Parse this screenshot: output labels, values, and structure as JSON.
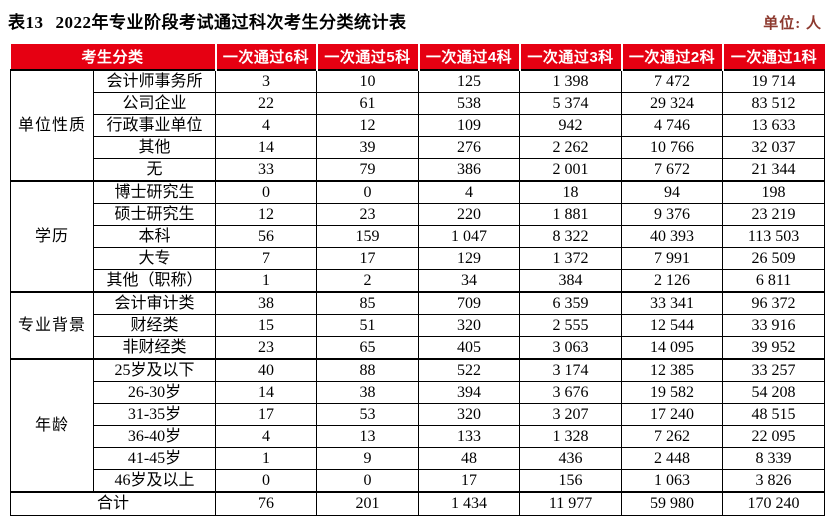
{
  "title": {
    "no": "表13",
    "text": "2022年专业阶段考试通过科次考生分类统计表"
  },
  "unit_label": "单位: 人",
  "colors": {
    "header_bg": "#e60012",
    "header_text": "#ffffff",
    "unit_text": "#8d3a2f",
    "border": "#000000"
  },
  "table": {
    "header": [
      "考生分类",
      "一次通过6科",
      "一次通过5科",
      "一次通过4科",
      "一次通过3科",
      "一次通过2科",
      "一次通过1科"
    ],
    "groups": [
      {
        "label": "单位性质",
        "rows": [
          {
            "label": "会计师事务所",
            "values": [
              "3",
              "10",
              "125",
              "1 398",
              "7 472",
              "19 714"
            ]
          },
          {
            "label": "公司企业",
            "values": [
              "22",
              "61",
              "538",
              "5 374",
              "29 324",
              "83 512"
            ]
          },
          {
            "label": "行政事业单位",
            "values": [
              "4",
              "12",
              "109",
              "942",
              "4 746",
              "13 633"
            ]
          },
          {
            "label": "其他",
            "values": [
              "14",
              "39",
              "276",
              "2 262",
              "10 766",
              "32 037"
            ]
          },
          {
            "label": "无",
            "values": [
              "33",
              "79",
              "386",
              "2 001",
              "7 672",
              "21 344"
            ]
          }
        ]
      },
      {
        "label": "学历",
        "rows": [
          {
            "label": "博士研究生",
            "values": [
              "0",
              "0",
              "4",
              "18",
              "94",
              "198"
            ]
          },
          {
            "label": "硕士研究生",
            "values": [
              "12",
              "23",
              "220",
              "1 881",
              "9 376",
              "23 219"
            ]
          },
          {
            "label": "本科",
            "values": [
              "56",
              "159",
              "1 047",
              "8 322",
              "40 393",
              "113 503"
            ]
          },
          {
            "label": "大专",
            "values": [
              "7",
              "17",
              "129",
              "1 372",
              "7 991",
              "26 509"
            ]
          },
          {
            "label": "其他（职称）",
            "values": [
              "1",
              "2",
              "34",
              "384",
              "2 126",
              "6 811"
            ]
          }
        ]
      },
      {
        "label": "专业背景",
        "rows": [
          {
            "label": "会计审计类",
            "values": [
              "38",
              "85",
              "709",
              "6 359",
              "33 341",
              "96 372"
            ]
          },
          {
            "label": "财经类",
            "values": [
              "15",
              "51",
              "320",
              "2 555",
              "12 544",
              "33 916"
            ]
          },
          {
            "label": "非财经类",
            "values": [
              "23",
              "65",
              "405",
              "3 063",
              "14 095",
              "39 952"
            ]
          }
        ]
      },
      {
        "label": "年龄",
        "rows": [
          {
            "label": "25岁及以下",
            "values": [
              "40",
              "88",
              "522",
              "3 174",
              "12 385",
              "33 257"
            ]
          },
          {
            "label": "26-30岁",
            "values": [
              "14",
              "38",
              "394",
              "3 676",
              "19 582",
              "54 208"
            ]
          },
          {
            "label": "31-35岁",
            "values": [
              "17",
              "53",
              "320",
              "3 207",
              "17 240",
              "48 515"
            ]
          },
          {
            "label": "36-40岁",
            "values": [
              "4",
              "13",
              "133",
              "1 328",
              "7 262",
              "22 095"
            ]
          },
          {
            "label": "41-45岁",
            "values": [
              "1",
              "9",
              "48",
              "436",
              "2 448",
              "8 339"
            ]
          },
          {
            "label": "46岁及以上",
            "values": [
              "0",
              "0",
              "17",
              "156",
              "1 063",
              "3 826"
            ]
          }
        ]
      }
    ],
    "total": {
      "label": "合计",
      "values": [
        "76",
        "201",
        "1 434",
        "11 977",
        "59 980",
        "170 240"
      ]
    }
  }
}
